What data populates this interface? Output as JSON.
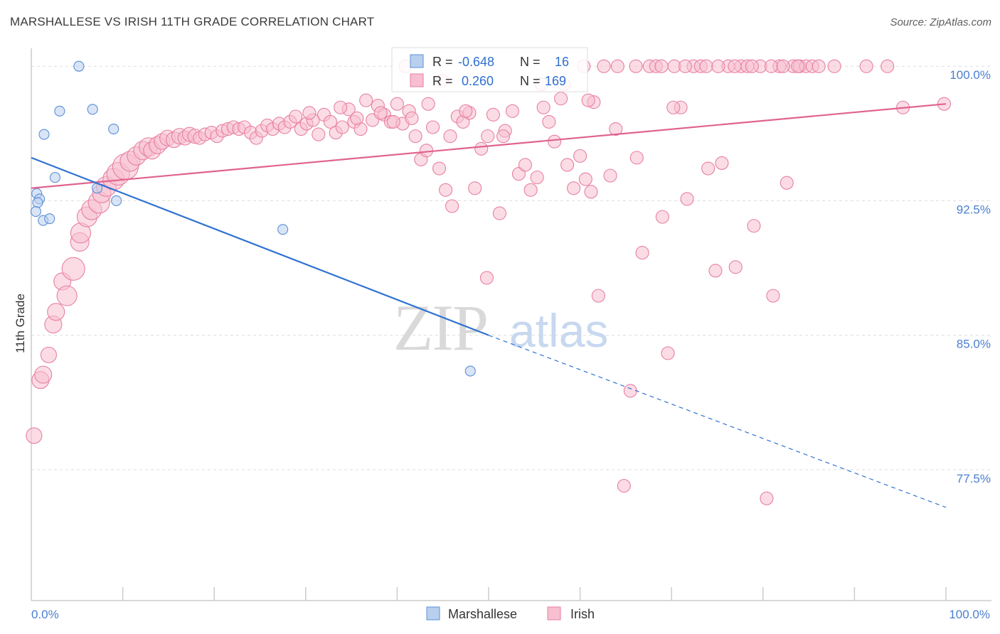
{
  "title": "MARSHALLESE VS IRISH 11TH GRADE CORRELATION CHART",
  "source": "Source: ZipAtlas.com",
  "watermark": {
    "zip": "ZIP",
    "atlas": "atlas"
  },
  "colors": {
    "marshallese_fill": "#b9cfee",
    "marshallese_stroke": "#5b8fd6",
    "marshallese_line": "#2f72d2",
    "irish_fill": "#f7bfd0",
    "irish_stroke": "#e77fa2",
    "irish_line": "#e06390",
    "tick_label": "#4a7fd0",
    "grid": "#dddddd"
  },
  "legend": {
    "rows": [
      {
        "r_label": "R =",
        "r_value": "-0.648",
        "n_label": "N =",
        "n_value": "16"
      },
      {
        "r_label": "R =",
        "r_value": " 0.260",
        "n_label": "N =",
        "n_value": "169"
      }
    ]
  },
  "chart_data": {
    "type": "scatter",
    "title": "MARSHALLESE VS IRISH 11TH GRADE CORRELATION CHART",
    "xlabel": "",
    "ylabel": "11th Grade",
    "xlim": [
      0,
      100
    ],
    "ylim": [
      70.2,
      101.0
    ],
    "x_tick_labels": [
      "0.0%",
      "100.0%"
    ],
    "y_ticks": [
      77.5,
      85.0,
      92.5,
      100.0
    ],
    "y_tick_labels": [
      "77.5%",
      "85.0%",
      "92.5%",
      "100.0%"
    ],
    "grid": true,
    "legend_position": "top-center",
    "series": [
      {
        "name": "Marshallese",
        "r": -0.648,
        "n": 16,
        "trend": {
          "x0": 0,
          "y0": 94.9,
          "x1": 50,
          "y1": 85.0,
          "dashed_to_x": 100,
          "dashed_to_y": 75.4
        },
        "points": [
          [
            5.2,
            100.0,
            7
          ],
          [
            3.1,
            97.5,
            7
          ],
          [
            6.7,
            97.6,
            7
          ],
          [
            1.4,
            96.2,
            7
          ],
          [
            9.0,
            96.5,
            7
          ],
          [
            2.6,
            93.8,
            7
          ],
          [
            7.2,
            93.2,
            7
          ],
          [
            0.6,
            92.9,
            7
          ],
          [
            0.9,
            92.6,
            7
          ],
          [
            0.7,
            92.4,
            7
          ],
          [
            9.3,
            92.5,
            7
          ],
          [
            0.5,
            91.9,
            7
          ],
          [
            1.3,
            91.4,
            7
          ],
          [
            2.0,
            91.5,
            7
          ],
          [
            27.5,
            90.9,
            7
          ],
          [
            48.0,
            83.0,
            7
          ]
        ]
      },
      {
        "name": "Irish",
        "r": 0.26,
        "n": 169,
        "trend": {
          "x0": 0,
          "y0": 93.2,
          "x1": 100,
          "y1": 97.9
        },
        "points": [
          [
            0.3,
            79.4,
            11
          ],
          [
            1.0,
            82.5,
            12
          ],
          [
            1.3,
            82.8,
            12
          ],
          [
            1.9,
            83.9,
            11
          ],
          [
            2.4,
            85.6,
            12
          ],
          [
            2.7,
            86.3,
            12
          ],
          [
            3.4,
            88.0,
            12
          ],
          [
            3.9,
            87.2,
            14
          ],
          [
            4.6,
            88.7,
            16
          ],
          [
            5.3,
            90.2,
            13
          ],
          [
            5.4,
            90.7,
            14
          ],
          [
            6.1,
            91.6,
            14
          ],
          [
            6.6,
            92.0,
            14
          ],
          [
            7.4,
            92.4,
            15
          ],
          [
            7.7,
            92.9,
            13
          ],
          [
            8.2,
            93.3,
            14
          ],
          [
            9.0,
            93.7,
            15
          ],
          [
            9.5,
            94.0,
            16
          ],
          [
            10.3,
            94.4,
            18
          ],
          [
            10.8,
            94.7,
            14
          ],
          [
            11.5,
            95.0,
            13
          ],
          [
            12.2,
            95.3,
            13
          ],
          [
            12.8,
            95.5,
            13
          ],
          [
            13.2,
            95.3,
            12
          ],
          [
            13.8,
            95.6,
            12
          ],
          [
            14.3,
            95.8,
            11
          ],
          [
            14.9,
            96.0,
            11
          ],
          [
            15.6,
            95.9,
            11
          ],
          [
            16.2,
            96.1,
            11
          ],
          [
            16.8,
            96.0,
            10
          ],
          [
            17.3,
            96.2,
            10
          ],
          [
            17.9,
            96.1,
            10
          ],
          [
            18.4,
            96.0,
            9
          ],
          [
            19.0,
            96.2,
            9
          ],
          [
            19.7,
            96.3,
            9
          ],
          [
            20.3,
            96.1,
            9
          ],
          [
            20.9,
            96.4,
            9
          ],
          [
            21.5,
            96.5,
            9
          ],
          [
            22.1,
            96.6,
            9
          ],
          [
            22.7,
            96.5,
            9
          ],
          [
            23.3,
            96.6,
            9
          ],
          [
            24.0,
            96.3,
            9
          ],
          [
            24.6,
            96.0,
            9
          ],
          [
            25.2,
            96.4,
            9
          ],
          [
            25.8,
            96.7,
            9
          ],
          [
            26.4,
            96.5,
            9
          ],
          [
            27.1,
            96.8,
            9
          ],
          [
            27.7,
            96.6,
            9
          ],
          [
            28.3,
            96.9,
            9
          ],
          [
            28.9,
            97.2,
            9
          ],
          [
            29.5,
            96.5,
            9
          ],
          [
            30.1,
            96.8,
            9
          ],
          [
            30.8,
            97.0,
            9
          ],
          [
            31.4,
            96.2,
            9
          ],
          [
            32.0,
            97.3,
            9
          ],
          [
            32.7,
            96.9,
            9
          ],
          [
            33.3,
            96.3,
            9
          ],
          [
            34.0,
            96.6,
            9
          ],
          [
            34.7,
            97.6,
            9
          ],
          [
            35.3,
            96.9,
            9
          ],
          [
            36.0,
            96.5,
            9
          ],
          [
            36.6,
            98.1,
            9
          ],
          [
            37.3,
            97.0,
            9
          ],
          [
            37.9,
            97.8,
            9
          ],
          [
            38.6,
            97.3,
            9
          ],
          [
            39.3,
            96.9,
            9
          ],
          [
            40.0,
            97.9,
            9
          ],
          [
            40.6,
            96.8,
            9
          ],
          [
            41.3,
            97.5,
            9
          ],
          [
            42.0,
            96.1,
            9
          ],
          [
            42.6,
            94.8,
            9
          ],
          [
            43.2,
            95.3,
            9
          ],
          [
            43.9,
            96.6,
            9
          ],
          [
            44.6,
            94.3,
            9
          ],
          [
            45.3,
            93.1,
            9
          ],
          [
            46.0,
            92.2,
            9
          ],
          [
            46.6,
            97.2,
            9
          ],
          [
            47.2,
            96.9,
            9
          ],
          [
            47.9,
            97.4,
            9
          ],
          [
            48.5,
            93.2,
            9
          ],
          [
            49.2,
            95.4,
            9
          ],
          [
            49.8,
            88.2,
            9
          ],
          [
            50.5,
            97.3,
            9
          ],
          [
            51.2,
            91.8,
            9
          ],
          [
            51.8,
            96.4,
            9
          ],
          [
            52.6,
            97.5,
            9
          ],
          [
            53.3,
            94.0,
            9
          ],
          [
            54.0,
            94.5,
            9
          ],
          [
            54.6,
            93.1,
            9
          ],
          [
            55.3,
            93.8,
            9
          ],
          [
            56.0,
            97.7,
            9
          ],
          [
            56.6,
            96.9,
            9
          ],
          [
            57.2,
            95.8,
            9
          ],
          [
            57.9,
            98.2,
            9
          ],
          [
            58.6,
            94.5,
            9
          ],
          [
            59.3,
            93.2,
            9
          ],
          [
            60.0,
            95.0,
            9
          ],
          [
            60.6,
            93.7,
            9
          ],
          [
            61.2,
            93.0,
            9
          ],
          [
            62.0,
            87.2,
            9
          ],
          [
            62.6,
            100.0,
            9
          ],
          [
            63.3,
            93.9,
            9
          ],
          [
            64.1,
            100.0,
            9
          ],
          [
            64.8,
            76.6,
            9
          ],
          [
            65.5,
            81.9,
            9
          ],
          [
            66.2,
            94.9,
            9
          ],
          [
            66.8,
            89.6,
            9
          ],
          [
            67.6,
            100.0,
            9
          ],
          [
            68.3,
            100.0,
            9
          ],
          [
            69.0,
            91.6,
            9
          ],
          [
            69.6,
            84.0,
            9
          ],
          [
            70.3,
            100.0,
            9
          ],
          [
            71.0,
            97.7,
            9
          ],
          [
            71.7,
            92.6,
            9
          ],
          [
            72.4,
            100.0,
            9
          ],
          [
            73.2,
            100.0,
            9
          ],
          [
            74.0,
            94.3,
            9
          ],
          [
            74.8,
            88.6,
            9
          ],
          [
            75.5,
            94.6,
            9
          ],
          [
            76.2,
            100.0,
            9
          ],
          [
            77.0,
            88.8,
            9
          ],
          [
            77.6,
            100.0,
            9
          ],
          [
            78.3,
            100.0,
            9
          ],
          [
            79.0,
            91.1,
            9
          ],
          [
            79.7,
            100.0,
            9
          ],
          [
            80.4,
            75.9,
            9
          ],
          [
            81.1,
            87.2,
            9
          ],
          [
            81.8,
            100.0,
            9
          ],
          [
            82.6,
            93.5,
            9
          ],
          [
            83.3,
            100.0,
            9
          ],
          [
            84.0,
            100.0,
            9
          ],
          [
            84.7,
            100.0,
            9
          ],
          [
            85.4,
            100.0,
            9
          ],
          [
            86.1,
            100.0,
            9
          ],
          [
            87.8,
            100.0,
            9
          ],
          [
            91.3,
            100.0,
            9
          ],
          [
            93.6,
            100.0,
            9
          ],
          [
            95.3,
            97.7,
            9
          ],
          [
            99.8,
            97.9,
            9
          ],
          [
            40.9,
            100.0,
            9
          ],
          [
            44.9,
            99.2,
            9
          ],
          [
            55.8,
            99.0,
            9
          ],
          [
            58.2,
            99.0,
            9
          ],
          [
            61.5,
            98.0,
            9
          ],
          [
            70.2,
            97.7,
            9
          ],
          [
            63.9,
            96.5,
            9
          ],
          [
            60.4,
            100.0,
            9
          ],
          [
            60.9,
            98.1,
            9
          ],
          [
            66.1,
            100.0,
            9
          ],
          [
            68.9,
            100.0,
            9
          ],
          [
            71.5,
            100.0,
            9
          ],
          [
            73.8,
            100.0,
            9
          ],
          [
            75.1,
            100.0,
            9
          ],
          [
            76.9,
            100.0,
            9
          ],
          [
            78.8,
            100.0,
            9
          ],
          [
            80.9,
            100.0,
            9
          ],
          [
            82.2,
            100.0,
            9
          ],
          [
            83.8,
            100.0,
            9
          ],
          [
            30.4,
            97.4,
            9
          ],
          [
            33.8,
            97.7,
            9
          ],
          [
            35.6,
            97.1,
            9
          ],
          [
            38.2,
            97.4,
            9
          ],
          [
            39.6,
            96.9,
            9
          ],
          [
            41.6,
            97.1,
            9
          ],
          [
            43.4,
            97.9,
            9
          ],
          [
            45.8,
            96.1,
            9
          ],
          [
            47.5,
            97.5,
            9
          ],
          [
            49.9,
            96.1,
            9
          ],
          [
            51.6,
            96.1,
            9
          ]
        ]
      }
    ]
  },
  "bottom_legend": {
    "items": [
      "Marshallese",
      "Irish"
    ]
  }
}
